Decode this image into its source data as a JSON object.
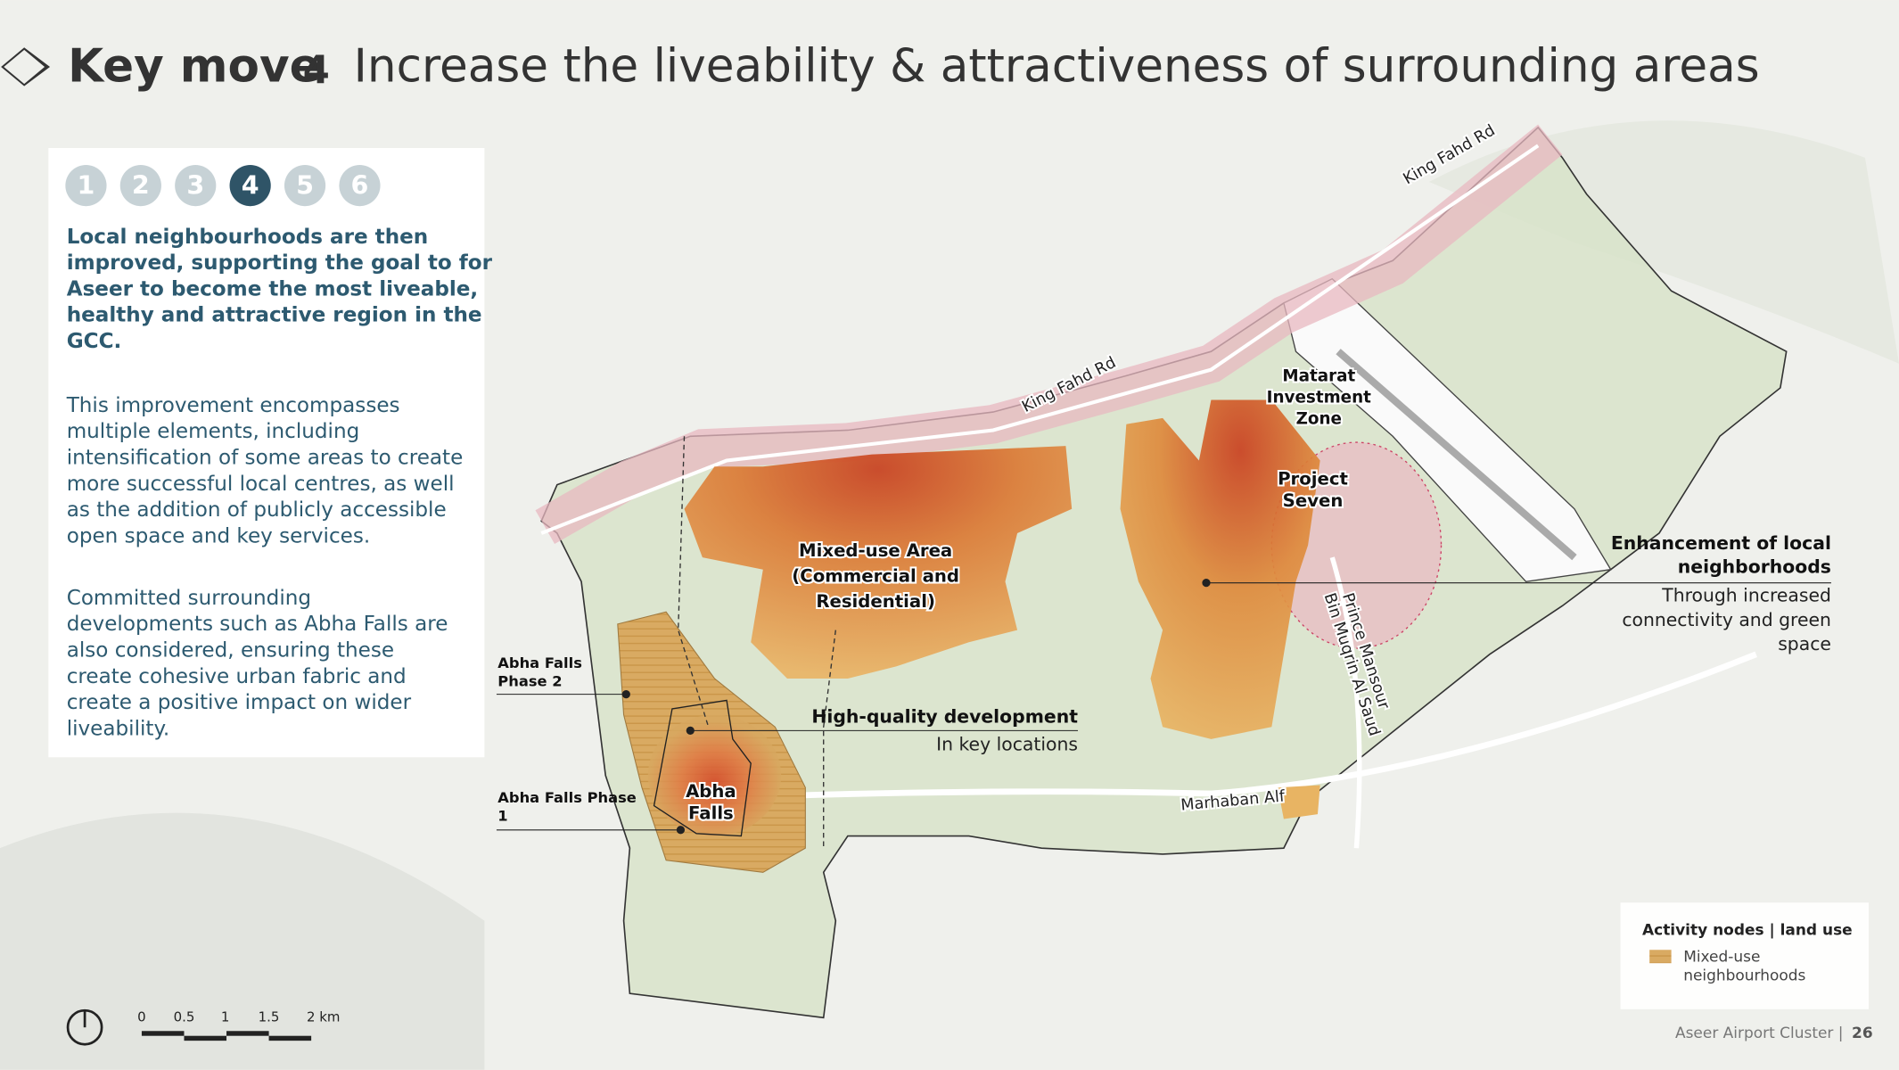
{
  "header": {
    "title_bold": "Key move",
    "number": "4",
    "title": "Increase the liveability & attractiveness of surrounding areas"
  },
  "steps": [
    "1",
    "2",
    "3",
    "4",
    "5",
    "6"
  ],
  "panel": {
    "lead": [
      "Local neighbourhoods are then",
      "improved, supporting the goal to for",
      "Aseer to become the most liveable,",
      "healthy and attractive region in the",
      "GCC."
    ],
    "paragraphs": [
      [
        "This improvement encompasses",
        "multiple elements, including",
        "intensification of some areas to create",
        "more successful local centres, as well",
        "as the addition of publicly accessible",
        "open space and key services."
      ],
      [
        "Committed surrounding",
        "developments such as Abha Falls are",
        "also considered, ensuring these",
        "create cohesive urban fabric and",
        "create a positive impact on wider",
        "liveability."
      ]
    ]
  },
  "map_labels": {
    "mixed_use": [
      "Mixed-use Area",
      "(Commercial and",
      "Residential)"
    ],
    "matarat": [
      "Matarat",
      "Investment",
      "Zone"
    ],
    "project_seven": [
      "Project",
      "Seven"
    ],
    "abha_falls": [
      "Abha",
      "Falls"
    ],
    "abha_falls_phase_2": [
      "Abha Falls",
      "Phase 2"
    ],
    "abha_falls_phase_1": [
      "Abha Falls Phase",
      "1"
    ],
    "king_fahd_1": "King Fahd Rd",
    "king_fahd_2": "King Fahd Rd",
    "prince_mansour": [
      "Prince Mansour",
      "Bin Muqrin Al Saud"
    ],
    "marhaban": "Marhaban Alf"
  },
  "callouts": [
    {
      "title": "High-quality development",
      "text": [
        "In key locations"
      ]
    },
    {
      "title": [
        "Enhancement of local",
        "neighborhoods"
      ],
      "text": [
        "Through increased",
        "connectivity and green",
        "space"
      ]
    }
  ],
  "legend": {
    "title": "Activity nodes | land use",
    "items": [
      [
        "Mixed-use",
        "neighbourhoods"
      ]
    ]
  },
  "scale": {
    "labels": [
      "0",
      "0.5",
      "1",
      "1.5",
      "2 km"
    ]
  },
  "footer": {
    "text": "Aseer Airport Cluster |",
    "page": "26"
  }
}
